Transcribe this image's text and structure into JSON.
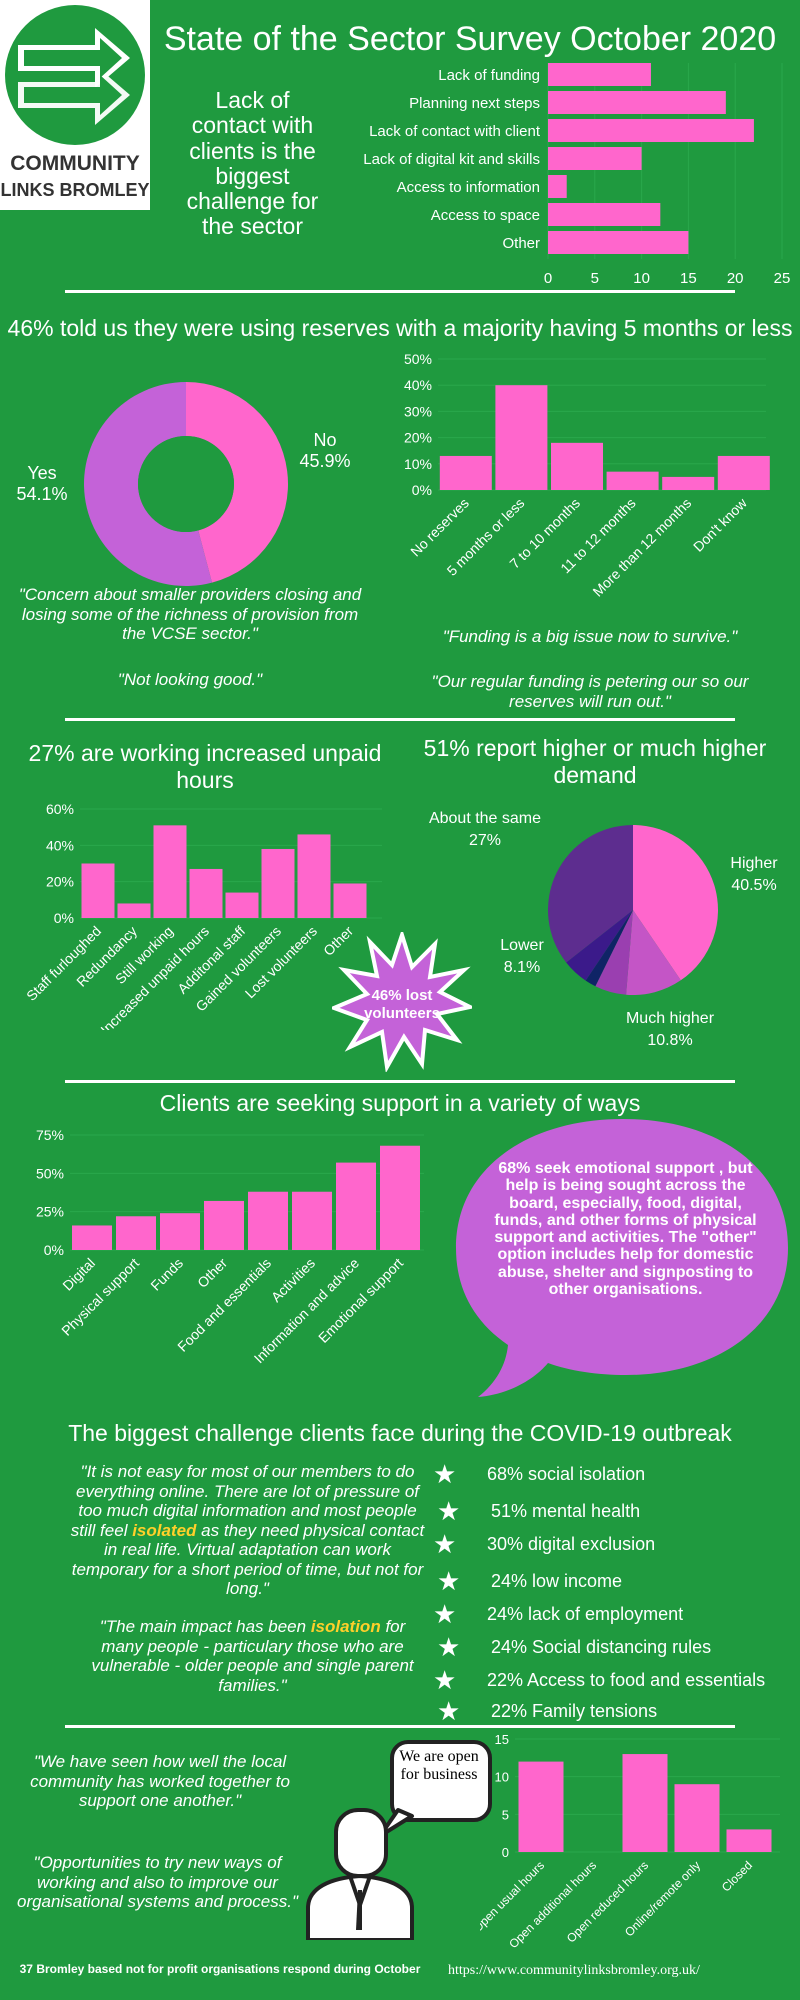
{
  "header": {
    "title": "State of the Sector Survey October 2020",
    "logo_line1": "COMMUNITY",
    "logo_line2": "LINKS BROMLEY",
    "lead_text": "Lack of contact with clients is the biggest challenge for the sector"
  },
  "colors": {
    "background": "#1f9a3f",
    "bar": "#ff66cc",
    "purple": "#c462d8",
    "white": "#ffffff"
  },
  "section_reserves": {
    "heading": "46% told us they were using reserves with a majority having 5 months or less",
    "donut_no_label": "No",
    "donut_no_value": "45.9%",
    "donut_yes_label": "Yes",
    "donut_yes_value": "54.1%",
    "quote1": "\"Concern about smaller providers closing and losing some of the richness of provision from the VCSE sector.\"",
    "quote2": "\"Not looking good.\"",
    "quote3": "\"Funding is a big issue now to survive.\"",
    "quote4": "\"Our regular funding is petering our so our reserves will run out.\""
  },
  "section_hours": {
    "heading": "27% are working increased unpaid hours",
    "burst_text": "46% lost volunteers"
  },
  "section_demand": {
    "heading": "51% report higher or much higher demand",
    "label_about": "About the same",
    "value_about": "27%",
    "label_higher": "Higher",
    "value_higher": "40.5%",
    "label_lower": "Lower",
    "value_lower": "8.1%",
    "label_much_higher": "Much higher",
    "value_much_higher": "10.8%"
  },
  "section_support": {
    "heading": "Clients are seeking support in a variety of ways",
    "bubble_text": "68% seek emotional support , but help is being sought across the board, especially, food, digital, funds, and other forms of physical support and activities. The \"other\" option includes help for domestic abuse, shelter and signposting to other organisations."
  },
  "section_challenge": {
    "heading": "The biggest challenge clients face during the COVID-19 outbreak",
    "quote1_a": "\"It is not easy for most of our members to do everything online. There are lot of pressure of too much digital information and most people still feel ",
    "quote1_hl": "isolated",
    "quote1_b": " as they need physical contact in real life. Virtual adaptation can work temporary for a short period of time, but not for long.\"",
    "quote2_a": "\"The main impact has been ",
    "quote2_hl": "isolation",
    "quote2_b": " for many people - particulary those who are vulnerable - older people and single parent families.\"",
    "stats": [
      "68% social isolation",
      "51% mental health",
      "30% digital exclusion",
      "24% low income",
      "24% lack of employment",
      "24% Social distancing rules",
      "22% Access to food and essentials",
      "22% Family tensions"
    ]
  },
  "section_open": {
    "quote1": "\"We have seen how well the local community has worked together to support one another.\"",
    "quote2": "\"Opportunities to try new ways of working and also to improve our organisational systems and process.\"",
    "speech": "We are open for business"
  },
  "footer": {
    "count": "37",
    "text": "Bromley based not for profit organisations respond during October",
    "url": "https://www.communitylinksbromley.org.uk/"
  },
  "chart_data": [
    {
      "type": "bar",
      "orientation": "horizontal",
      "categories": [
        "Lack of funding",
        "Planning next steps",
        "Lack of contact with client",
        "Lack of digital kit and skills",
        "Access to information",
        "Access to space",
        "Other"
      ],
      "values": [
        11,
        19,
        22,
        10,
        2,
        12,
        15
      ],
      "xticks": [
        "0",
        "5",
        "10",
        "15",
        "20",
        "25"
      ],
      "xlim": [
        0,
        25
      ]
    },
    {
      "type": "pie",
      "variant": "donut",
      "labels": [
        "No",
        "Yes"
      ],
      "values": [
        45.9,
        54.1
      ],
      "colors": [
        "#ff66cc",
        "#c462d8"
      ]
    },
    {
      "type": "bar",
      "categories": [
        "No reserves",
        "5 months or less",
        "7 to 10 months",
        "11 to 12 months",
        "More than 12 months",
        "Don't know"
      ],
      "values": [
        13,
        40,
        18,
        7,
        5,
        13
      ],
      "yticks": [
        "0%",
        "10%",
        "20%",
        "30%",
        "40%",
        "50%"
      ],
      "ylim": [
        0,
        50
      ]
    },
    {
      "type": "bar",
      "categories": [
        "Staff furloughed",
        "Redundancy",
        "Still working",
        "Increased unpaid hours",
        "Additonal staff",
        "Gained volunteers",
        "Lost volunteers",
        "Other"
      ],
      "values": [
        30,
        8,
        51,
        27,
        14,
        38,
        46,
        19
      ],
      "yticks": [
        "0%",
        "20%",
        "40%",
        "60%"
      ],
      "ylim": [
        0,
        60
      ]
    },
    {
      "type": "pie",
      "labels": [
        "Higher",
        "Much higher",
        "Lower",
        "About the same"
      ],
      "values": [
        40.5,
        10.8,
        8.1,
        27
      ],
      "colors": [
        "#ff66cc",
        "#c455c6",
        "#9a3fb0",
        "#0f2466",
        "#3b1a8a",
        "#5d2d8f"
      ]
    },
    {
      "type": "bar",
      "categories": [
        "Digital",
        "Physical support",
        "Funds",
        "Other",
        "Food and essentials",
        "Activities",
        "Information and advice",
        "Emotional support"
      ],
      "values": [
        16,
        22,
        24,
        32,
        38,
        38,
        57,
        68
      ],
      "yticks": [
        "0%",
        "25%",
        "50%",
        "75%"
      ],
      "ylim": [
        0,
        75
      ]
    },
    {
      "type": "bar",
      "categories": [
        "Open usual hours",
        "Open additional hours",
        "Open reduced hours",
        "Online/remote only",
        "Closed"
      ],
      "values": [
        12,
        0,
        13,
        9,
        3
      ],
      "yticks": [
        "0",
        "5",
        "10",
        "15"
      ],
      "ylim": [
        0,
        15
      ]
    }
  ]
}
